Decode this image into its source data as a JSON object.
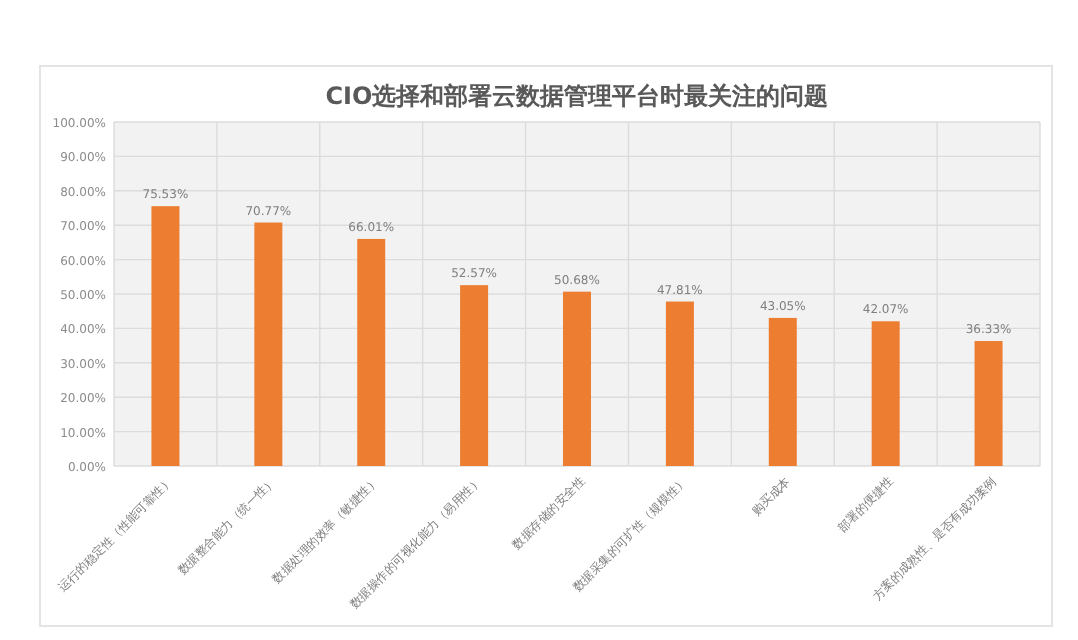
{
  "chart_data": {
    "type": "bar",
    "title": "CIO选择和部署云数据管理平台时最关注的问题",
    "categories": [
      "运行的稳定性（性能可靠性）",
      "数据整合能力（统一性）",
      "数据处理的效率（敏捷性）",
      "数据操作的可视化能力（易用性）",
      "数据存储的安全性",
      "数据采集的可扩性（规模性）",
      "购买成本",
      "部署的便捷性",
      "方案的成熟性、是否有成功案例"
    ],
    "values": [
      75.53,
      70.77,
      66.01,
      52.57,
      50.68,
      47.81,
      43.05,
      42.07,
      36.33
    ],
    "value_labels": [
      "75.53%",
      "70.77%",
      "66.01%",
      "52.57%",
      "50.68%",
      "47.81%",
      "43.05%",
      "42.07%",
      "36.33%"
    ],
    "color": "#ed7d31",
    "ylim": [
      0,
      100
    ],
    "yticks": [
      {
        "value": 0,
        "label": "0.00%"
      },
      {
        "value": 10,
        "label": "10.00%"
      },
      {
        "value": 20,
        "label": "20.00%"
      },
      {
        "value": 30,
        "label": "30.00%"
      },
      {
        "value": 40,
        "label": "40.00%"
      },
      {
        "value": 50,
        "label": "50.00%"
      },
      {
        "value": 60,
        "label": "60.00%"
      },
      {
        "value": 70,
        "label": "70.00%"
      },
      {
        "value": 80,
        "label": "80.00%"
      },
      {
        "value": 90,
        "label": "90.00%"
      },
      {
        "value": 100,
        "label": "100.00%"
      }
    ],
    "grid": true
  }
}
